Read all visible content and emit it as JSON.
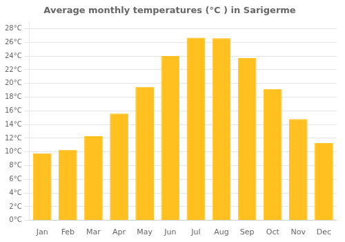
{
  "chart_data": {
    "type": "bar",
    "title": "Average monthly temperatures (°C ) in Sarigerme",
    "categories": [
      "Jan",
      "Feb",
      "Mar",
      "Apr",
      "May",
      "Jun",
      "Jul",
      "Aug",
      "Sep",
      "Oct",
      "Nov",
      "Dec"
    ],
    "values": [
      9.8,
      10.3,
      12.3,
      15.6,
      19.5,
      24.0,
      26.7,
      26.6,
      23.7,
      19.2,
      14.8,
      11.3
    ],
    "color": "#FFC020",
    "ylim": [
      0,
      29
    ],
    "yticks": [
      {
        "value": 0,
        "label": "0°C"
      },
      {
        "value": 2,
        "label": "2°C"
      },
      {
        "value": 4,
        "label": "4°C"
      },
      {
        "value": 6,
        "label": "6°C"
      },
      {
        "value": 8,
        "label": "8°C"
      },
      {
        "value": 10,
        "label": "10°C"
      },
      {
        "value": 12,
        "label": "12°C"
      },
      {
        "value": 14,
        "label": "14°C"
      },
      {
        "value": 16,
        "label": "16°C"
      },
      {
        "value": 18,
        "label": "18°C"
      },
      {
        "value": 20,
        "label": "20°C"
      },
      {
        "value": 22,
        "label": "22°C"
      },
      {
        "value": 24,
        "label": "24°C"
      },
      {
        "value": 26,
        "label": "26°C"
      },
      {
        "value": 28,
        "label": "28°C"
      }
    ],
    "grid": true
  }
}
